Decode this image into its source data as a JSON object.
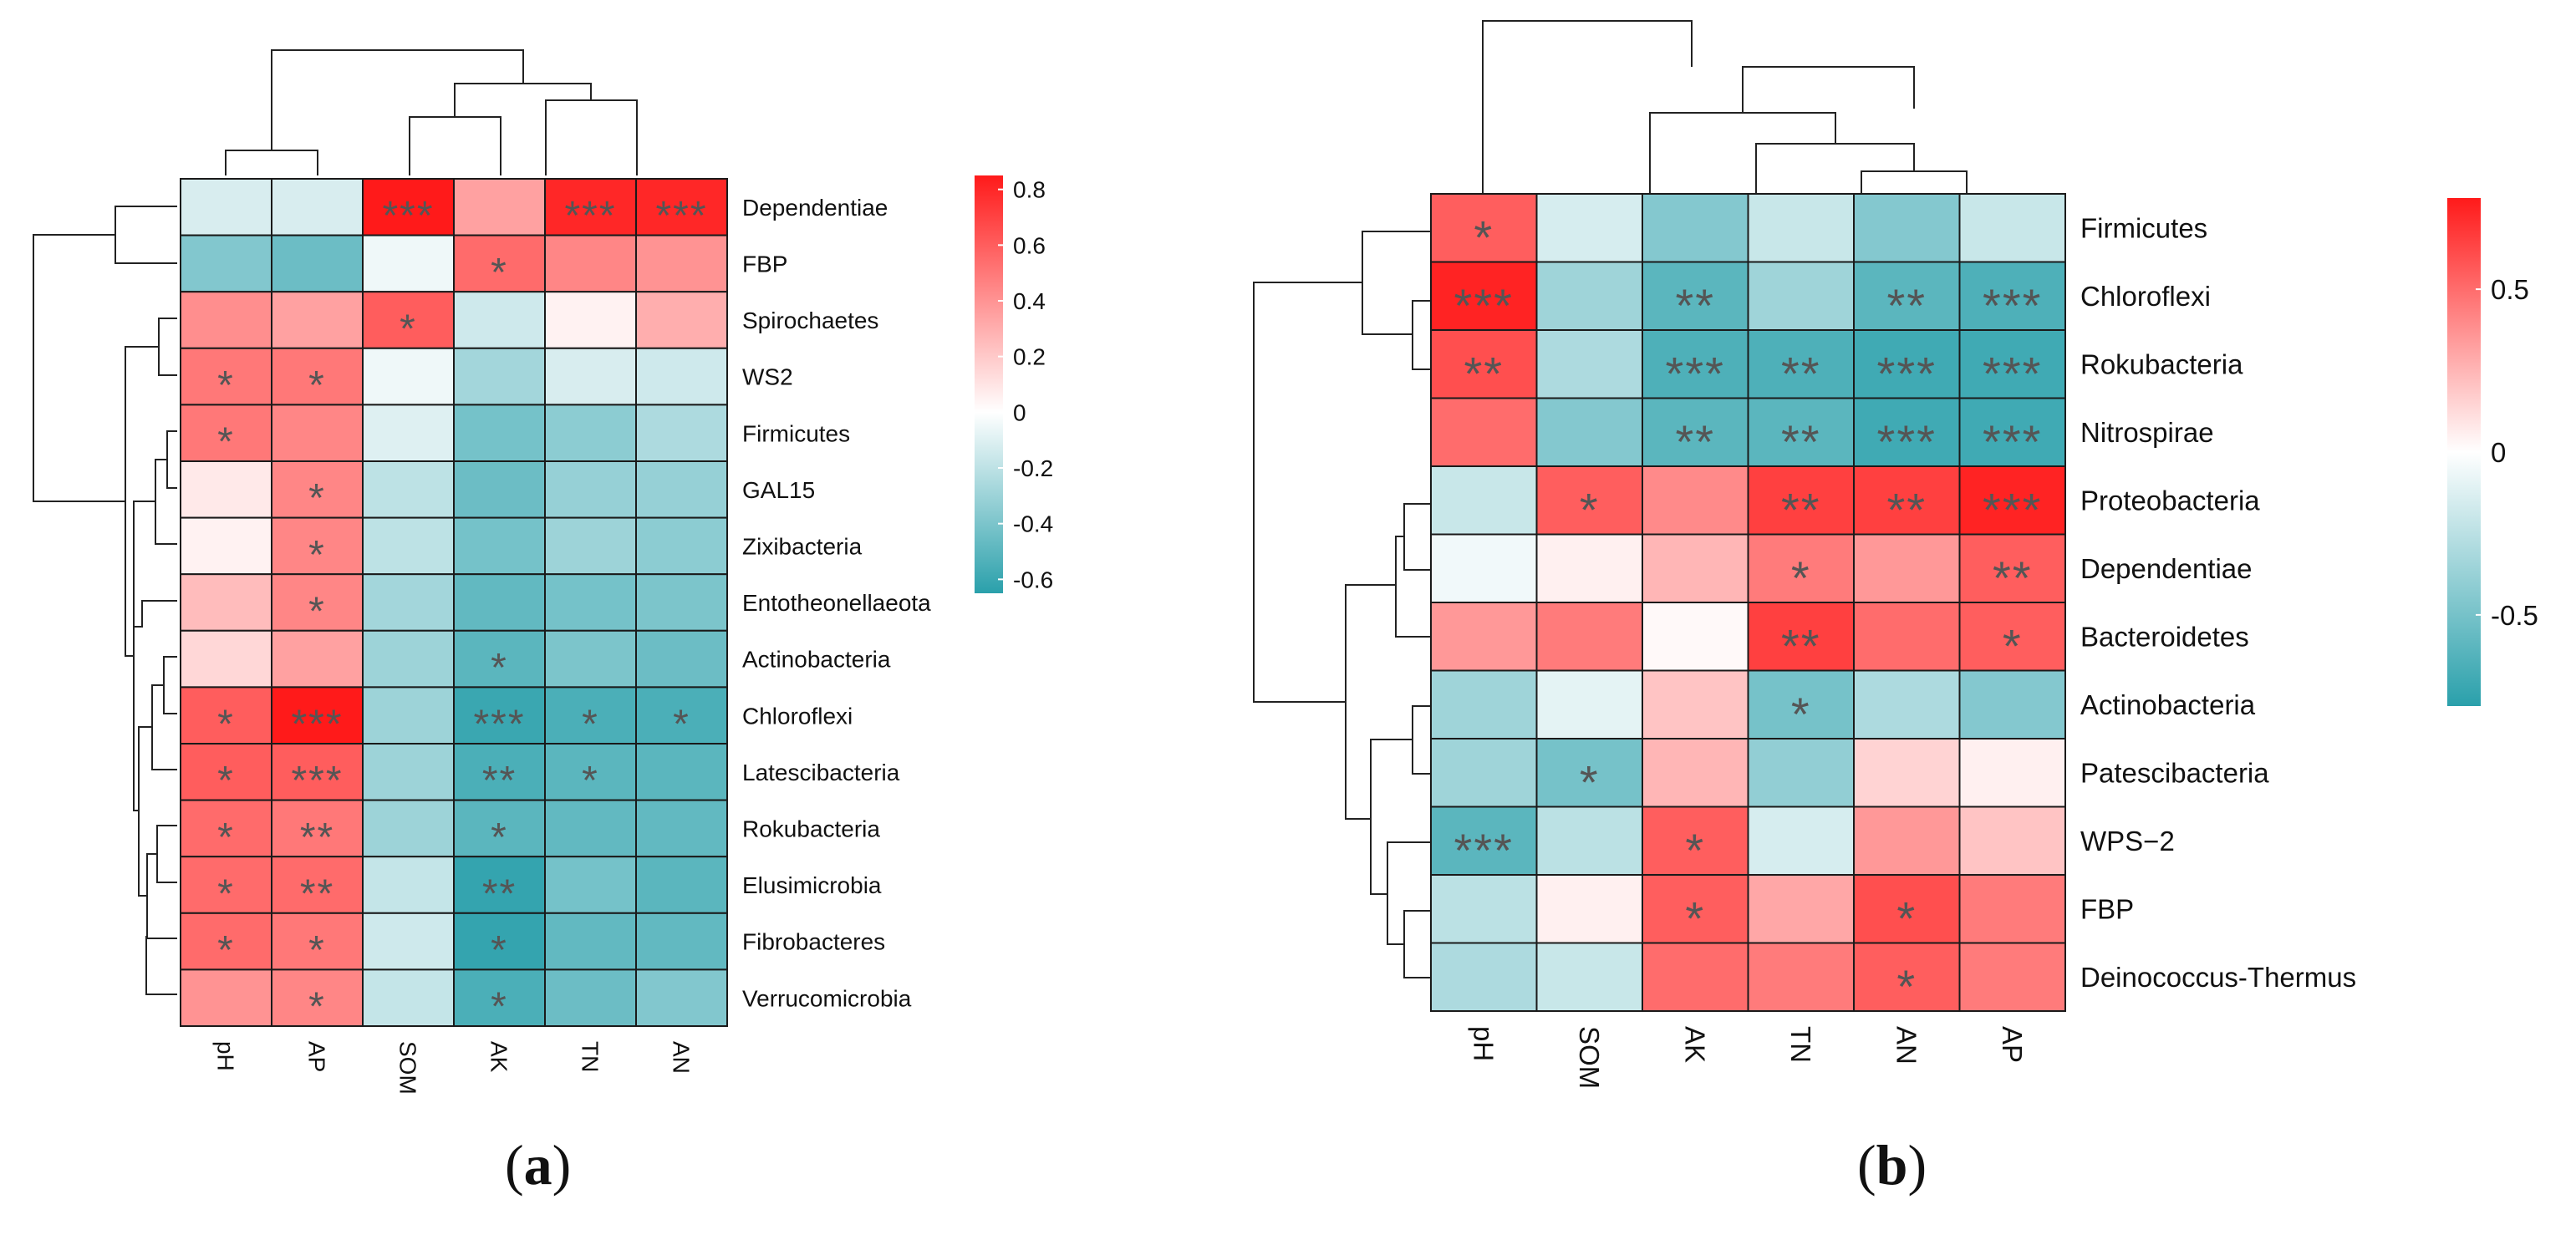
{
  "chart_data": [
    {
      "type": "heatmap",
      "panel": "a",
      "columns": [
        "pH",
        "AP",
        "SOM",
        "AK",
        "TN",
        "AN"
      ],
      "rows": [
        "Dependentiae",
        "FBP",
        "Spirochaetes",
        "WS2",
        "Firmicutes",
        "GAL15",
        "Zixibacteria",
        "Entotheonellaeota",
        "Actinobacteria",
        "Chloroflexi",
        "Latescibacteria",
        "Rokubacteria",
        "Elusimicrobia",
        "Fibrobacteres",
        "Verrucomicrobia"
      ],
      "values": [
        [
          -0.12,
          -0.12,
          0.85,
          0.35,
          0.8,
          0.8
        ],
        [
          -0.38,
          -0.45,
          -0.05,
          0.55,
          0.45,
          0.4
        ],
        [
          0.42,
          0.35,
          0.6,
          -0.15,
          0.05,
          0.3
        ],
        [
          0.5,
          0.5,
          -0.05,
          -0.28,
          -0.12,
          -0.15
        ],
        [
          0.5,
          0.45,
          -0.1,
          -0.42,
          -0.35,
          -0.25
        ],
        [
          0.08,
          0.45,
          -0.2,
          -0.45,
          -0.32,
          -0.32
        ],
        [
          0.05,
          0.45,
          -0.2,
          -0.42,
          -0.3,
          -0.35
        ],
        [
          0.25,
          0.45,
          -0.28,
          -0.48,
          -0.42,
          -0.4
        ],
        [
          0.15,
          0.35,
          -0.3,
          -0.5,
          -0.4,
          -0.45
        ],
        [
          0.6,
          0.85,
          -0.3,
          -0.6,
          -0.55,
          -0.55
        ],
        [
          0.6,
          0.6,
          -0.3,
          -0.55,
          -0.5,
          -0.5
        ],
        [
          0.55,
          0.5,
          -0.3,
          -0.5,
          -0.48,
          -0.48
        ],
        [
          0.55,
          0.55,
          -0.18,
          -0.62,
          -0.42,
          -0.5
        ],
        [
          0.55,
          0.5,
          -0.15,
          -0.62,
          -0.48,
          -0.48
        ],
        [
          0.4,
          0.45,
          -0.18,
          -0.55,
          -0.45,
          -0.38
        ]
      ],
      "significance": [
        [
          "",
          "",
          "***",
          "",
          "***",
          "***"
        ],
        [
          "",
          "",
          "",
          "*",
          "",
          ""
        ],
        [
          "",
          "",
          "*",
          "",
          "",
          ""
        ],
        [
          "*",
          "*",
          "",
          "",
          "",
          ""
        ],
        [
          "*",
          "",
          "",
          "",
          "",
          ""
        ],
        [
          "",
          "*",
          "",
          "",
          "",
          ""
        ],
        [
          "",
          "*",
          "",
          "",
          "",
          ""
        ],
        [
          "",
          "*",
          "",
          "",
          "",
          ""
        ],
        [
          "",
          "",
          "",
          "*",
          "",
          ""
        ],
        [
          "*",
          "***",
          "",
          "***",
          "*",
          "*"
        ],
        [
          "*",
          "***",
          "",
          "**",
          "*",
          ""
        ],
        [
          "*",
          "**",
          "",
          "*",
          "",
          ""
        ],
        [
          "*",
          "**",
          "",
          "**",
          "",
          ""
        ],
        [
          "*",
          "*",
          "",
          "*",
          "",
          ""
        ],
        [
          "",
          "*",
          "",
          "*",
          "",
          ""
        ]
      ],
      "colorbar": {
        "min": -0.65,
        "max": 0.85,
        "ticks": [
          0.8,
          0.6,
          0.4,
          0.2,
          0,
          -0.2,
          -0.4,
          -0.6
        ],
        "tick_labels": [
          "0.8",
          "0.6",
          "0.4",
          "0.2",
          "0",
          "-0.2",
          "-0.4",
          "-0.6"
        ],
        "colors": [
          "#2aa0ab",
          "#ffffff",
          "#ff1a1a"
        ]
      },
      "caption": "a"
    },
    {
      "type": "heatmap",
      "panel": "b",
      "columns": [
        "pH",
        "SOM",
        "AK",
        "TN",
        "AN",
        "AP"
      ],
      "rows": [
        "Firmicutes",
        "Chloroflexi",
        "Rokubacteria",
        "Nitrospirae",
        "Proteobacteria",
        "Dependentiae",
        "Bacteroidetes",
        "Actinobacteria",
        "Patescibacteria",
        "WPS−2",
        "FBP",
        "Deinococcus-Thermus"
      ],
      "values": [
        [
          0.55,
          -0.15,
          -0.45,
          -0.2,
          -0.45,
          -0.2
        ],
        [
          0.75,
          -0.35,
          -0.6,
          -0.35,
          -0.6,
          -0.65
        ],
        [
          0.6,
          -0.3,
          -0.65,
          -0.65,
          -0.7,
          -0.7
        ],
        [
          0.5,
          -0.45,
          -0.6,
          -0.6,
          -0.7,
          -0.7
        ],
        [
          -0.2,
          0.55,
          0.4,
          0.65,
          0.65,
          0.75
        ],
        [
          -0.05,
          0.05,
          0.25,
          0.45,
          0.35,
          0.55
        ],
        [
          0.35,
          0.45,
          0.02,
          0.65,
          0.5,
          0.55
        ],
        [
          -0.35,
          -0.1,
          0.2,
          -0.5,
          -0.3,
          -0.45
        ],
        [
          -0.35,
          -0.5,
          0.25,
          -0.4,
          0.15,
          0.05
        ],
        [
          -0.6,
          -0.25,
          0.55,
          -0.15,
          0.35,
          0.2
        ],
        [
          -0.25,
          0.05,
          0.55,
          0.3,
          0.6,
          0.45
        ],
        [
          -0.3,
          -0.2,
          0.5,
          0.45,
          0.55,
          0.45
        ]
      ],
      "significance": [
        [
          "*",
          "",
          "",
          "",
          "",
          ""
        ],
        [
          "***",
          "",
          "**",
          "",
          "**",
          "***"
        ],
        [
          "**",
          "",
          "***",
          "**",
          "***",
          "***"
        ],
        [
          "",
          "",
          "**",
          "**",
          "***",
          "***"
        ],
        [
          "",
          "*",
          "",
          "**",
          "**",
          "***"
        ],
        [
          "",
          "",
          "",
          "*",
          "",
          "**"
        ],
        [
          "",
          "",
          "",
          "**",
          "",
          "*"
        ],
        [
          "",
          "",
          "",
          "*",
          "",
          ""
        ],
        [
          "",
          "*",
          "",
          "",
          "",
          ""
        ],
        [
          "***",
          "",
          "*",
          "",
          "",
          ""
        ],
        [
          "",
          "",
          "*",
          "",
          "*",
          ""
        ],
        [
          "",
          "",
          "",
          "",
          "*",
          ""
        ]
      ],
      "colorbar": {
        "min": -0.78,
        "max": 0.78,
        "ticks": [
          0.5,
          0,
          -0.5
        ],
        "tick_labels": [
          "0.5",
          "0",
          "-0.5"
        ],
        "colors": [
          "#2aa0ab",
          "#ffffff",
          "#ff1a1a"
        ]
      },
      "caption": "b"
    }
  ]
}
